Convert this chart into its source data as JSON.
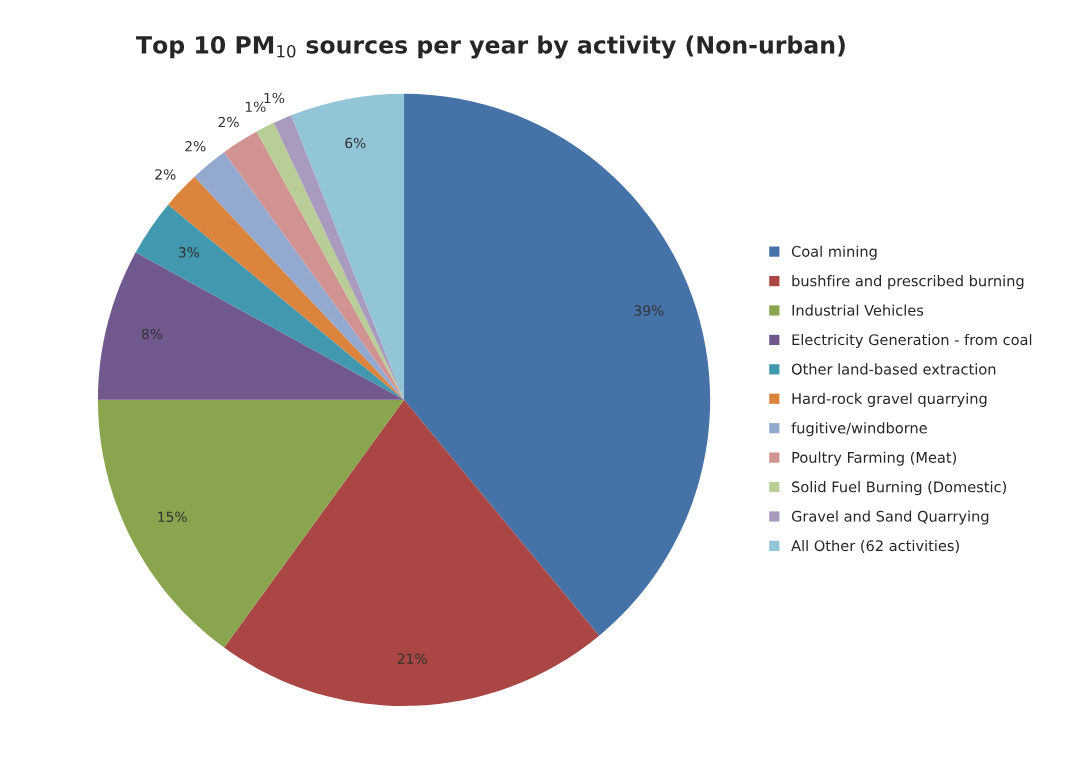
{
  "chart_data": {
    "type": "pie",
    "title": "Top 10 PM$_{10}$ sources per year by activity (Non-urban)",
    "categories": [
      "Coal mining",
      "bushfire and prescribed burning",
      "Industrial Vehicles",
      "Electricity Generation - from coal",
      "Other land-based extraction",
      "Hard-rock gravel quarrying",
      "fugitive/windborne",
      "Poultry Farming (Meat)",
      "Solid Fuel Burning (Domestic)",
      "Gravel and Sand Quarrying",
      "All Other (62 activities)"
    ],
    "values": [
      39,
      21,
      15,
      8,
      3,
      2,
      2,
      2,
      1,
      1,
      6
    ],
    "value_labels": [
      "39%",
      "21%",
      "15%",
      "8%",
      "3%",
      "2%",
      "2%",
      "2%",
      "1%",
      "1%",
      "6%"
    ],
    "colors": [
      "#4572a7",
      "#aa4643",
      "#89a54e",
      "#71588f",
      "#4198af",
      "#db843d",
      "#93a9cf",
      "#d19392",
      "#b9cd96",
      "#a99bbd",
      "#92c5d6"
    ],
    "legend": "right"
  }
}
